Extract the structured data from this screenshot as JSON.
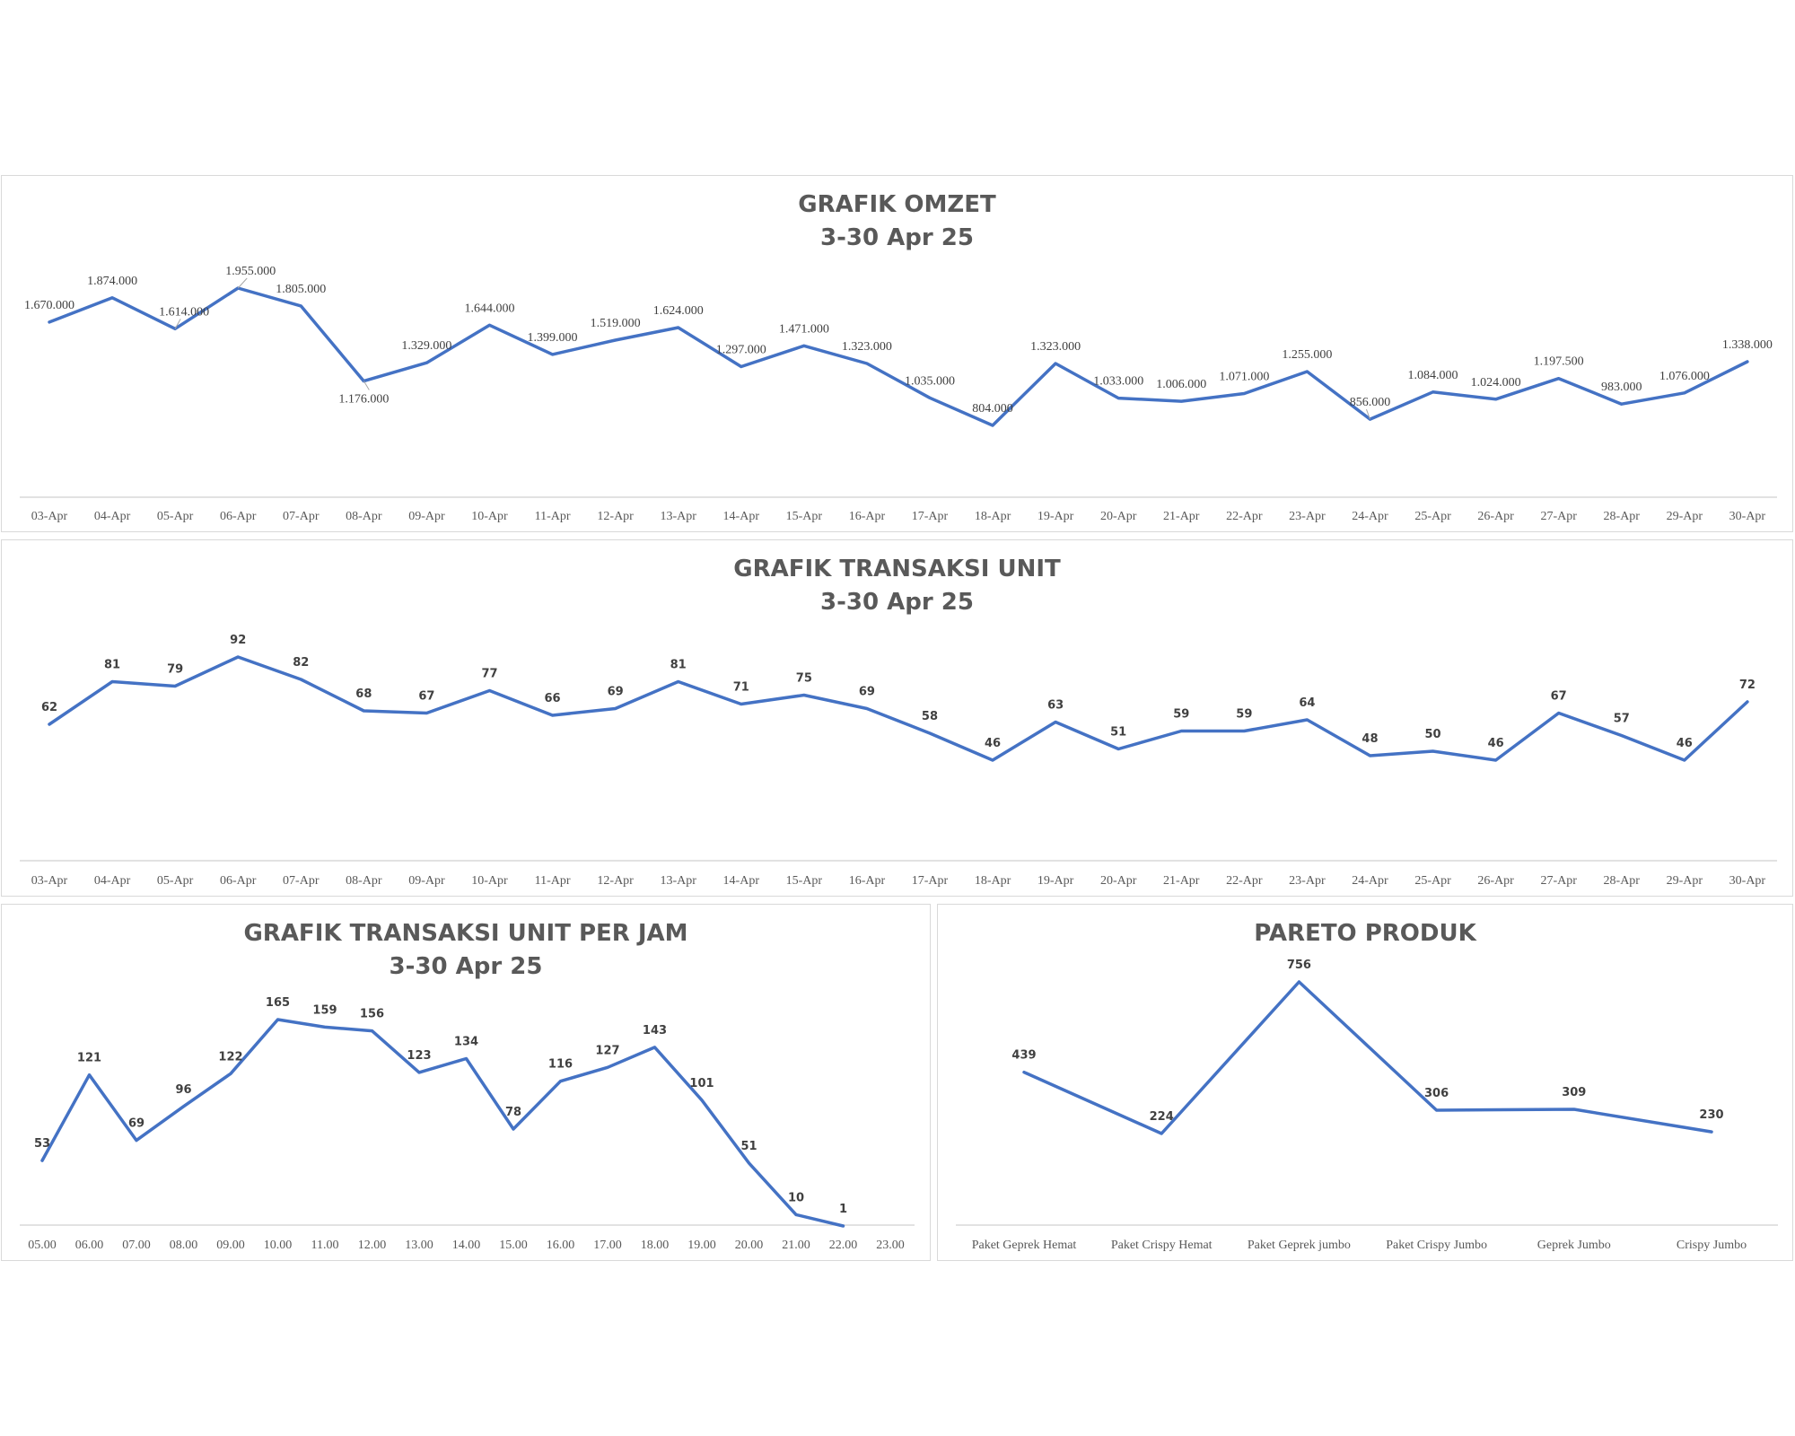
{
  "chart_data": [
    {
      "id": "omzet",
      "type": "line",
      "title": "GRAFIK OMZET",
      "subtitle": "3-30 Apr 25",
      "categories": [
        "03-Apr",
        "04-Apr",
        "05-Apr",
        "06-Apr",
        "07-Apr",
        "08-Apr",
        "09-Apr",
        "10-Apr",
        "11-Apr",
        "12-Apr",
        "13-Apr",
        "14-Apr",
        "15-Apr",
        "16-Apr",
        "17-Apr",
        "18-Apr",
        "19-Apr",
        "20-Apr",
        "21-Apr",
        "22-Apr",
        "23-Apr",
        "24-Apr",
        "25-Apr",
        "26-Apr",
        "27-Apr",
        "28-Apr",
        "29-Apr",
        "30-Apr"
      ],
      "values": [
        1670000,
        1874000,
        1614000,
        1955000,
        1805000,
        1176000,
        1329000,
        1644000,
        1399000,
        1519000,
        1624000,
        1297000,
        1471000,
        1323000,
        1035000,
        804000,
        1323000,
        1033000,
        1006000,
        1071000,
        1255000,
        856000,
        1084000,
        1024000,
        1197500,
        983000,
        1076000,
        1338000
      ],
      "labels": [
        "1.670.000",
        "1.874.000",
        "1.614.000",
        "1.955.000",
        "1.805.000",
        "1.176.000",
        "1.329.000",
        "1.644.000",
        "1.399.000",
        "1.519.000",
        "1.624.000",
        "1.297.000",
        "1.471.000",
        "1.323.000",
        "1.035.000",
        "804.000",
        "1.323.000",
        "1.033.000",
        "1.006.000",
        "1.071.000",
        "1.255.000",
        "856.000",
        "1.084.000",
        "1.024.000",
        "1.197.500",
        "983.000",
        "1.076.000",
        "1.338.000"
      ],
      "color": "#4472C4"
    },
    {
      "id": "unit",
      "type": "line",
      "title": "GRAFIK TRANSAKSI UNIT",
      "subtitle": "3-30 Apr 25",
      "categories": [
        "03-Apr",
        "04-Apr",
        "05-Apr",
        "06-Apr",
        "07-Apr",
        "08-Apr",
        "09-Apr",
        "10-Apr",
        "11-Apr",
        "12-Apr",
        "13-Apr",
        "14-Apr",
        "15-Apr",
        "16-Apr",
        "17-Apr",
        "18-Apr",
        "19-Apr",
        "20-Apr",
        "21-Apr",
        "22-Apr",
        "23-Apr",
        "24-Apr",
        "25-Apr",
        "26-Apr",
        "27-Apr",
        "28-Apr",
        "29-Apr",
        "30-Apr"
      ],
      "values": [
        62,
        81,
        79,
        92,
        82,
        68,
        67,
        77,
        66,
        69,
        81,
        71,
        75,
        69,
        58,
        46,
        63,
        51,
        59,
        59,
        64,
        48,
        50,
        46,
        67,
        57,
        46,
        72
      ],
      "color": "#4472C4"
    },
    {
      "id": "perjam",
      "type": "line",
      "title": "GRAFIK TRANSAKSI UNIT PER JAM",
      "subtitle": "3-30 Apr 25",
      "categories": [
        "05.00",
        "06.00",
        "07.00",
        "08.00",
        "09.00",
        "10.00",
        "11.00",
        "12.00",
        "13.00",
        "14.00",
        "15.00",
        "16.00",
        "17.00",
        "18.00",
        "19.00",
        "20.00",
        "21.00",
        "22.00",
        "23.00"
      ],
      "values": [
        53,
        121,
        69,
        96,
        122,
        165,
        159,
        156,
        123,
        134,
        78,
        116,
        127,
        143,
        101,
        51,
        10,
        1,
        null
      ],
      "color": "#4472C4"
    },
    {
      "id": "pareto",
      "type": "line",
      "title": "PARETO PRODUK",
      "subtitle": "",
      "categories": [
        "Paket Geprek Hemat",
        "Paket Crispy Hemat",
        "Paket Geprek jumbo",
        "Paket Crispy Jumbo",
        "Geprek Jumbo",
        "Crispy Jumbo"
      ],
      "values": [
        439,
        224,
        756,
        306,
        309,
        230
      ],
      "color": "#4472C4"
    }
  ]
}
